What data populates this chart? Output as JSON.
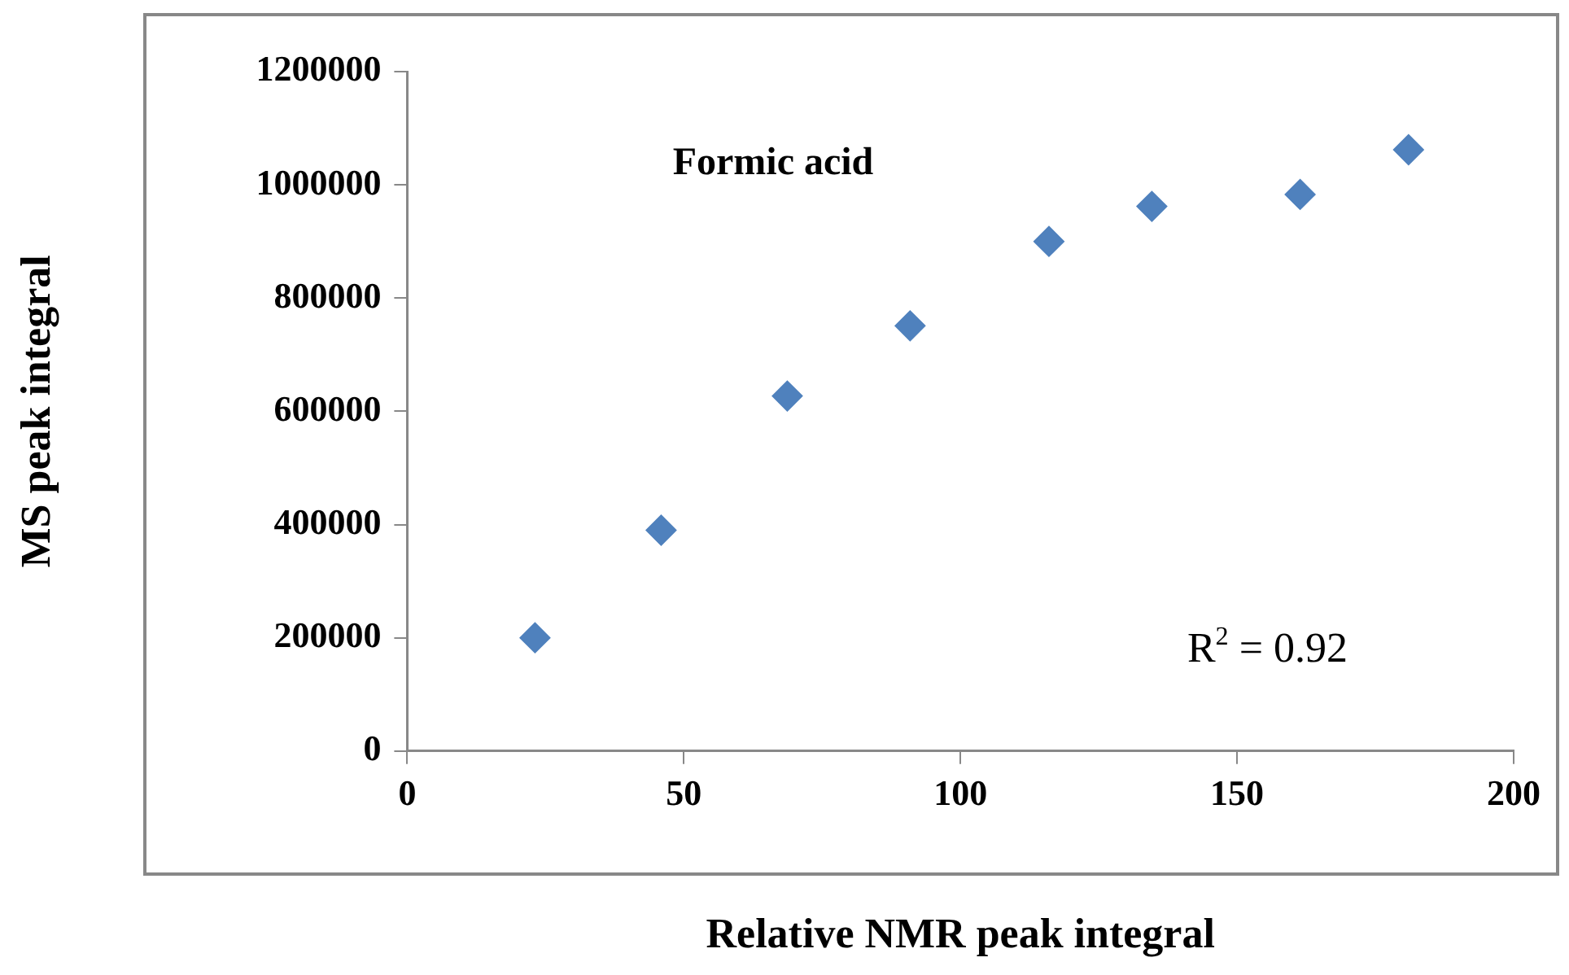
{
  "chart_data": {
    "type": "scatter",
    "title": "Formic acid",
    "xlabel": "Relative NMR peak integral",
    "ylabel": "MS peak integral",
    "annotations": [
      "R$^{2}$ = 0.92"
    ],
    "x": [
      23.1,
      45.9,
      68.7,
      90.9,
      116,
      134.6,
      161.4,
      181
    ],
    "series": [
      {
        "color": "#4f81bd",
        "values": [
          200000,
          390000,
          627000,
          751000,
          900000,
          962000,
          983000,
          1062000
        ]
      }
    ],
    "xlim": [
      0,
      200
    ],
    "xticks": [
      0,
      50,
      100,
      150,
      200
    ],
    "ylim": [
      0,
      1200000
    ],
    "yticks": [
      0,
      200000,
      400000,
      600000,
      800000,
      1000000,
      1200000
    ],
    "grid": false,
    "legend": false,
    "marker": "diamond"
  }
}
